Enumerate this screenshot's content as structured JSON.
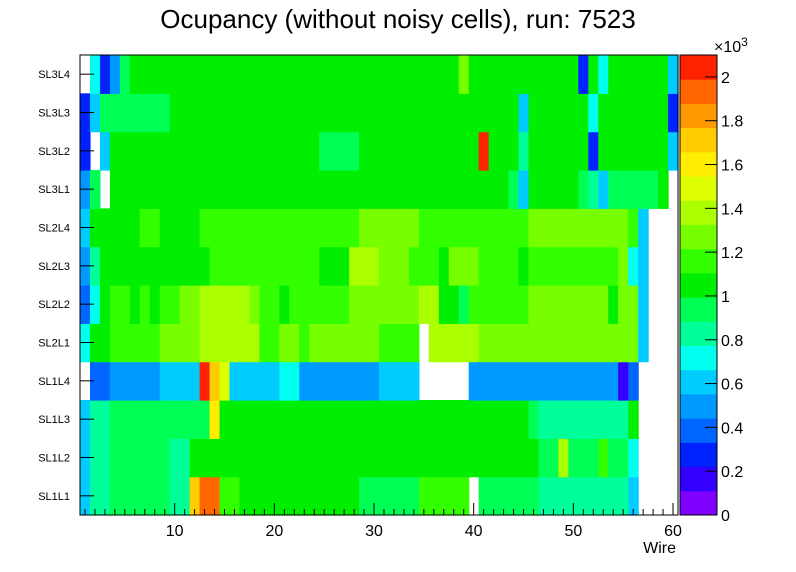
{
  "chart_data": {
    "type": "heatmap",
    "title": "Ocupancy (without noisy cells), run: 7523",
    "xlabel": "Wire",
    "ylabel": "",
    "xlim": [
      0.5,
      60.5
    ],
    "x_ticks": [
      "10",
      "20",
      "30",
      "40",
      "50",
      "60"
    ],
    "x_tick_values": [
      10,
      20,
      30,
      40,
      50,
      60
    ],
    "categories_y": [
      "SL1L1",
      "SL1L2",
      "SL1L3",
      "SL1L4",
      "SL2L1",
      "SL2L2",
      "SL2L3",
      "SL2L4",
      "SL3L1",
      "SL3L2",
      "SL3L3",
      "SL3L4"
    ],
    "zlim": [
      0,
      2100
    ],
    "z_exponent_label": "×10",
    "z_exponent_power": "3",
    "z_ticks": [
      "0",
      "0.2",
      "0.4",
      "0.6",
      "0.8",
      "1",
      "1.2",
      "1.4",
      "1.6",
      "1.8",
      "2"
    ],
    "z_tick_values": [
      0,
      200,
      400,
      600,
      800,
      1000,
      1200,
      1400,
      1600,
      1800,
      2000
    ],
    "palette": [
      "#7f00ff",
      "#3300ff",
      "#0022ff",
      "#0066ff",
      "#0099ff",
      "#00ccff",
      "#00ffee",
      "#00ff99",
      "#00ff55",
      "#00ee00",
      "#33ff00",
      "#77ff00",
      "#aaff00",
      "#ddff00",
      "#ffee00",
      "#ffcc00",
      "#ff9900",
      "#ff6600",
      "#ff2200"
    ],
    "rows": [
      {
        "layer": "SL1L1",
        "values": [
          650,
          780,
          780,
          920,
          920,
          920,
          920,
          920,
          920,
          880,
          880,
          1680,
          1950,
          1900,
          1120,
          1120,
          1100,
          1100,
          1100,
          1100,
          1100,
          1100,
          1100,
          1100,
          1100,
          1100,
          1100,
          1050,
          950,
          950,
          950,
          950,
          950,
          950,
          1150,
          1150,
          1150,
          1150,
          1150,
          0,
          950,
          950,
          950,
          950,
          950,
          950,
          820,
          820,
          820,
          820,
          820,
          820,
          820,
          780,
          780,
          650,
          0,
          0,
          0,
          0
        ]
      },
      {
        "layer": "SL1L2",
        "values": [
          600,
          780,
          780,
          920,
          920,
          920,
          920,
          920,
          920,
          880,
          880,
          1100,
          1100,
          1100,
          1100,
          1100,
          1100,
          1100,
          1100,
          1100,
          1100,
          1100,
          1100,
          1100,
          1100,
          1100,
          1100,
          1050,
          1000,
          1000,
          1000,
          1000,
          1000,
          1000,
          1100,
          1100,
          1100,
          1100,
          1100,
          1100,
          1000,
          1000,
          1000,
          1000,
          1000,
          1000,
          980,
          980,
          1350,
          980,
          980,
          980,
          1150,
          950,
          950,
          750,
          0,
          0,
          0,
          0
        ]
      },
      {
        "layer": "SL1L3",
        "values": [
          600,
          780,
          780,
          920,
          920,
          920,
          920,
          920,
          920,
          900,
          900,
          900,
          900,
          1550,
          1000,
          1000,
          1000,
          1000,
          1000,
          1000,
          1000,
          1000,
          1000,
          1000,
          1000,
          1000,
          1000,
          1000,
          1000,
          1000,
          1000,
          1000,
          1000,
          1000,
          1100,
          1100,
          1100,
          1100,
          1100,
          1100,
          1000,
          1000,
          1000,
          1000,
          1000,
          900,
          850,
          850,
          850,
          850,
          850,
          850,
          850,
          850,
          850,
          1100,
          0,
          0,
          0,
          0
        ]
      },
      {
        "layer": "SL1L4",
        "values": [
          0,
          350,
          350,
          500,
          500,
          500,
          500,
          500,
          650,
          650,
          650,
          650,
          2050,
          1700,
          1500,
          650,
          650,
          650,
          650,
          650,
          700,
          700,
          550,
          550,
          550,
          550,
          550,
          550,
          550,
          550,
          650,
          650,
          650,
          650,
          0,
          0,
          0,
          0,
          0,
          550,
          450,
          500,
          500,
          500,
          500,
          500,
          500,
          450,
          450,
          450,
          450,
          450,
          450,
          450,
          200,
          400,
          0,
          0,
          0,
          0
        ]
      },
      {
        "layer": "SL2L1",
        "values": [
          750,
          1050,
          1050,
          1150,
          1150,
          1150,
          1150,
          1150,
          1250,
          1250,
          1250,
          1250,
          1350,
          1350,
          1350,
          1350,
          1350,
          1350,
          1200,
          1200,
          1300,
          1300,
          1200,
          1250,
          1250,
          1250,
          1250,
          1250,
          1250,
          1250,
          1200,
          1200,
          1200,
          1200,
          0,
          1350,
          1350,
          1350,
          1350,
          1350,
          1250,
          1250,
          1250,
          1250,
          1250,
          1250,
          1250,
          1250,
          1250,
          1250,
          1250,
          1250,
          1250,
          1250,
          1250,
          1250,
          650,
          0,
          0,
          0
        ]
      },
      {
        "layer": "SL2L2",
        "values": [
          350,
          700,
          1100,
          1150,
          1150,
          1050,
          1150,
          1050,
          1150,
          1150,
          1300,
          1300,
          1350,
          1350,
          1350,
          1350,
          1350,
          1300,
          1200,
          1200,
          1100,
          1200,
          1200,
          1200,
          1200,
          1200,
          1200,
          1250,
          1300,
          1300,
          1300,
          1300,
          1300,
          1300,
          1350,
          1350,
          1100,
          1100,
          950,
          1200,
          1200,
          1200,
          1200,
          1200,
          1200,
          1300,
          1300,
          1300,
          1300,
          1300,
          1300,
          1300,
          1300,
          1100,
          1300,
          1300,
          650,
          0,
          0,
          0
        ]
      },
      {
        "layer": "SL2L3",
        "values": [
          500,
          800,
          1100,
          1100,
          1100,
          1100,
          1100,
          1100,
          1100,
          1100,
          1100,
          1100,
          1050,
          1200,
          1200,
          1200,
          1200,
          1200,
          1200,
          1200,
          1200,
          1200,
          1200,
          1200,
          1100,
          1100,
          1100,
          1350,
          1350,
          1350,
          1300,
          1300,
          1300,
          1200,
          1200,
          1200,
          1100,
          1300,
          1300,
          1300,
          1200,
          1200,
          1200,
          1200,
          1050,
          1200,
          1200,
          1200,
          1200,
          1200,
          1200,
          1200,
          1200,
          1200,
          1250,
          750,
          650,
          0,
          0,
          0
        ]
      },
      {
        "layer": "SL2L4",
        "values": [
          600,
          1100,
          1100,
          1100,
          1100,
          1100,
          1150,
          1150,
          1100,
          1100,
          1100,
          1100,
          1200,
          1200,
          1200,
          1200,
          1200,
          1200,
          1200,
          1200,
          1200,
          1200,
          1200,
          1200,
          1200,
          1200,
          1200,
          1200,
          1300,
          1300,
          1300,
          1300,
          1300,
          1300,
          1200,
          1200,
          1200,
          1200,
          1200,
          1200,
          1200,
          1200,
          1200,
          1200,
          1200,
          1300,
          1300,
          1300,
          1300,
          1300,
          1300,
          1300,
          1300,
          1300,
          1300,
          1150,
          650,
          0,
          0,
          0
        ]
      },
      {
        "layer": "SL3L1",
        "values": [
          500,
          950,
          0,
          1050,
          1050,
          1050,
          1000,
          1000,
          1000,
          1000,
          1100,
          1100,
          1100,
          1100,
          1000,
          1000,
          1000,
          1000,
          1000,
          1000,
          1000,
          1000,
          1100,
          1100,
          1100,
          1100,
          1100,
          1100,
          1050,
          1050,
          1050,
          1050,
          1050,
          1050,
          1050,
          1050,
          1050,
          1050,
          1050,
          1050,
          1000,
          1000,
          1000,
          950,
          650,
          1050,
          1000,
          1000,
          1000,
          1000,
          950,
          850,
          650,
          950,
          950,
          950,
          950,
          950,
          1050,
          0
        ]
      },
      {
        "layer": "SL3L2",
        "values": [
          250,
          0,
          650,
          1050,
          1050,
          1050,
          1050,
          1050,
          1050,
          1050,
          1050,
          1050,
          1050,
          1050,
          1050,
          1050,
          1050,
          1050,
          1050,
          1050,
          1050,
          1050,
          1050,
          1050,
          950,
          950,
          950,
          950,
          1050,
          1050,
          1050,
          1050,
          1050,
          1050,
          1050,
          1050,
          1050,
          1050,
          1050,
          1050,
          2000,
          1050,
          1050,
          1050,
          850,
          1050,
          1050,
          1050,
          1050,
          1050,
          1050,
          300,
          1050,
          1050,
          1050,
          1050,
          1050,
          1050,
          1050,
          650
        ]
      },
      {
        "layer": "SL3L3",
        "values": [
          300,
          650,
          950,
          950,
          950,
          950,
          950,
          950,
          950,
          1050,
          1050,
          1050,
          1050,
          1050,
          1050,
          1050,
          1050,
          1050,
          1050,
          1050,
          1050,
          1050,
          1050,
          1050,
          1050,
          1050,
          1050,
          1050,
          1050,
          1050,
          1050,
          1050,
          1050,
          1050,
          1050,
          1050,
          1050,
          1050,
          1050,
          1050,
          1050,
          1050,
          1050,
          1050,
          650,
          1050,
          1050,
          1050,
          1050,
          1050,
          1050,
          750,
          1050,
          1050,
          1050,
          1050,
          1050,
          1050,
          1050,
          300
        ]
      },
      {
        "layer": "SL3L4",
        "values": [
          0,
          750,
          300,
          500,
          950,
          1050,
          1050,
          1050,
          1050,
          1050,
          1050,
          1050,
          1050,
          1050,
          1050,
          1050,
          1050,
          1050,
          1050,
          1050,
          1050,
          1050,
          1050,
          1050,
          1050,
          1050,
          1050,
          1050,
          1050,
          1050,
          1050,
          1050,
          1050,
          1050,
          1050,
          1050,
          1050,
          1050,
          1250,
          1050,
          1050,
          1050,
          1050,
          1050,
          1050,
          1050,
          1050,
          1050,
          1050,
          1050,
          300,
          1050,
          750,
          1050,
          1050,
          1050,
          1050,
          1050,
          1050,
          650
        ]
      }
    ]
  }
}
